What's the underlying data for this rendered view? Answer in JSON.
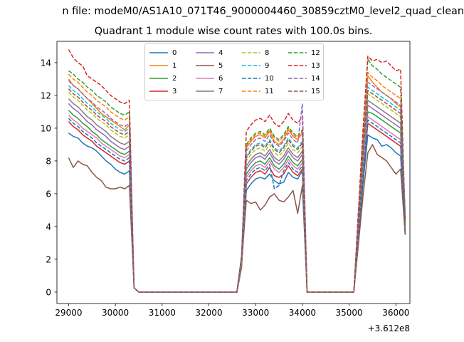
{
  "suptitle": "n file: modeM0/AS1A10_071T46_9000004460_30859cztM0_level2_quad_clean",
  "chart_data": {
    "type": "line",
    "title": "Quadrant 1 module wise count rates with 100.0s bins.",
    "xlabel": "",
    "ylabel": "",
    "offset_label": "+3.612e8",
    "xlim": [
      28750,
      36300
    ],
    "ylim": [
      -0.7,
      15.3
    ],
    "xticks": [
      29000,
      30000,
      31000,
      32000,
      33000,
      34000,
      35000,
      36000
    ],
    "xtick_labels": [
      "29000",
      "30000",
      "31000",
      "32000",
      "33000",
      "34000",
      "35000",
      "36000"
    ],
    "yticks": [
      0,
      2,
      4,
      6,
      8,
      10,
      12,
      14
    ],
    "ytick_labels": [
      "0",
      "2",
      "4",
      "6",
      "8",
      "10",
      "12",
      "14"
    ],
    "legend_loc": "upper center",
    "x_segments": [
      {
        "start": 29000,
        "step": 100,
        "count": 14
      },
      {
        "start": 30400,
        "step": 100,
        "count": 1
      },
      {
        "start": 30500,
        "step": 100,
        "count": 20
      },
      {
        "start": 32600,
        "step": 100,
        "count": 13
      },
      {
        "start": 33900,
        "step": 100,
        "count": 13
      },
      {
        "start": 35300,
        "step": 100,
        "count": 10
      }
    ],
    "gap_value": 0.0,
    "series": [
      {
        "name": "0",
        "color": "#1f77b4",
        "style": "solid",
        "up1": [
          9.7,
          9.5,
          9.4,
          9.1,
          8.9,
          8.8,
          8.6,
          8.3,
          8.0,
          7.8,
          7.5,
          7.3,
          7.2,
          7.4
        ],
        "up2": [
          6.2,
          6.6,
          6.9,
          7.0,
          6.9,
          7.2,
          6.8,
          6.6,
          6.7,
          7.3,
          7.0,
          6.9,
          7.4
        ],
        "up3": [
          9.6,
          9.4,
          9.3,
          8.9,
          9.0,
          8.8,
          8.5,
          8.3,
          8.1,
          7.9
        ]
      },
      {
        "name": "1",
        "color": "#ff7f0e",
        "style": "solid",
        "up1": [
          13.0,
          12.6,
          12.4,
          12.1,
          11.8,
          11.5,
          11.2,
          10.9,
          10.7,
          10.5,
          10.3,
          10.1,
          9.9,
          10.2
        ],
        "up2": [
          8.8,
          9.2,
          9.5,
          9.6,
          9.4,
          9.8,
          9.2,
          9.0,
          9.3,
          9.9,
          9.5,
          9.3,
          9.7
        ],
        "up3": [
          13.2,
          12.8,
          12.5,
          12.2,
          12.0,
          11.8,
          11.5,
          11.3,
          11.1,
          10.8
        ]
      },
      {
        "name": "2",
        "color": "#2ca02c",
        "style": "solid",
        "up1": [
          11.1,
          10.8,
          10.6,
          10.3,
          10.1,
          9.8,
          9.6,
          9.3,
          9.1,
          8.9,
          8.7,
          8.5,
          8.4,
          8.6
        ],
        "up2": [
          7.2,
          7.6,
          7.9,
          8.0,
          7.8,
          8.2,
          7.7,
          7.5,
          7.8,
          8.3,
          7.9,
          7.7,
          8.1
        ],
        "up3": [
          11.0,
          10.9,
          10.7,
          10.5,
          10.3,
          10.1,
          9.9,
          9.7,
          9.5,
          9.3
        ]
      },
      {
        "name": "3",
        "color": "#d62728",
        "style": "solid",
        "up1": [
          10.4,
          10.1,
          9.9,
          9.6,
          9.4,
          9.2,
          8.9,
          8.7,
          8.5,
          8.3,
          8.1,
          7.9,
          7.8,
          8.0
        ],
        "up2": [
          6.6,
          7.0,
          7.3,
          7.4,
          7.2,
          7.6,
          7.1,
          7.0,
          7.2,
          7.7,
          7.3,
          7.1,
          7.5
        ],
        "up3": [
          10.3,
          10.1,
          9.9,
          9.7,
          9.5,
          9.3,
          9.1,
          8.9,
          8.7,
          8.5
        ]
      },
      {
        "name": "4",
        "color": "#9467bd",
        "style": "solid",
        "up1": [
          11.5,
          11.2,
          11.0,
          10.7,
          10.4,
          10.2,
          9.9,
          9.7,
          9.5,
          9.2,
          9.0,
          8.8,
          8.7,
          8.9
        ],
        "up2": [
          7.5,
          7.9,
          8.2,
          8.3,
          8.1,
          8.5,
          8.0,
          7.8,
          8.1,
          8.6,
          8.2,
          8.0,
          8.4
        ],
        "up3": [
          11.4,
          11.2,
          11.0,
          10.8,
          10.6,
          10.4,
          10.2,
          10.0,
          9.8,
          9.6
        ]
      },
      {
        "name": "5",
        "color": "#8c564b",
        "style": "solid",
        "up1": [
          8.2,
          7.6,
          8.0,
          7.8,
          7.7,
          7.3,
          7.0,
          6.8,
          6.4,
          6.3,
          6.3,
          6.4,
          6.3,
          6.5
        ],
        "up2": [
          5.6,
          5.4,
          5.5,
          5.0,
          5.3,
          5.8,
          6.0,
          5.6,
          5.5,
          5.8,
          6.2,
          4.8,
          6.5
        ],
        "up3": [
          8.5,
          9.0,
          8.4,
          8.2,
          8.0,
          7.6,
          7.2,
          7.5,
          7.0,
          6.9
        ]
      },
      {
        "name": "6",
        "color": "#e377c2",
        "style": "solid",
        "up1": [
          10.8,
          10.5,
          10.3,
          10.0,
          9.8,
          9.6,
          9.4,
          9.1,
          8.9,
          8.7,
          8.5,
          8.3,
          8.2,
          8.4
        ],
        "up2": [
          7.0,
          7.4,
          7.7,
          7.8,
          7.6,
          8.0,
          7.5,
          7.3,
          7.6,
          8.1,
          7.7,
          7.5,
          7.9
        ],
        "up3": [
          10.7,
          10.5,
          10.3,
          10.1,
          9.9,
          9.7,
          9.5,
          9.3,
          9.1,
          8.9
        ]
      },
      {
        "name": "7",
        "color": "#7f7f7f",
        "style": "solid",
        "up1": [
          11.8,
          11.5,
          11.3,
          11.0,
          10.7,
          10.5,
          10.2,
          10.0,
          9.8,
          9.5,
          9.3,
          9.1,
          9.0,
          9.2
        ],
        "up2": [
          7.7,
          8.1,
          8.4,
          8.5,
          8.3,
          8.7,
          8.2,
          8.0,
          8.3,
          8.8,
          8.4,
          8.2,
          8.6
        ],
        "up3": [
          11.7,
          11.5,
          11.3,
          11.1,
          10.9,
          10.7,
          10.5,
          10.3,
          10.1,
          9.9
        ]
      },
      {
        "name": "8",
        "color": "#bcbd22",
        "style": "dashed",
        "up1": [
          12.2,
          11.9,
          11.7,
          11.4,
          11.1,
          10.9,
          10.6,
          10.4,
          10.2,
          9.9,
          9.7,
          9.5,
          9.4,
          9.6
        ],
        "up2": [
          8.0,
          8.4,
          8.7,
          8.8,
          8.6,
          9.0,
          8.5,
          8.3,
          8.6,
          9.1,
          8.7,
          8.5,
          8.9
        ],
        "up3": [
          12.1,
          11.9,
          11.7,
          11.5,
          11.3,
          11.1,
          10.9,
          10.7,
          10.5,
          10.3
        ]
      },
      {
        "name": "9",
        "color": "#17becf",
        "style": "dashed",
        "up1": [
          12.6,
          12.3,
          12.1,
          11.8,
          11.5,
          11.3,
          11.0,
          10.8,
          10.6,
          10.3,
          10.1,
          9.9,
          9.8,
          10.0
        ],
        "up2": [
          8.3,
          8.7,
          9.0,
          9.1,
          8.9,
          9.3,
          8.8,
          8.6,
          8.9,
          9.4,
          9.0,
          8.8,
          9.2
        ],
        "up3": [
          12.5,
          12.3,
          12.1,
          11.9,
          11.7,
          11.5,
          11.3,
          11.1,
          10.9,
          10.7
        ]
      },
      {
        "name": "10",
        "color": "#1f77b4",
        "style": "dashed",
        "up1": [
          10.6,
          10.3,
          10.1,
          9.8,
          9.6,
          9.4,
          9.1,
          8.9,
          8.7,
          8.5,
          8.3,
          8.1,
          8.0,
          8.2
        ],
        "up2": [
          6.8,
          7.2,
          7.5,
          7.6,
          7.4,
          7.8,
          6.3,
          6.5,
          7.4,
          7.9,
          7.5,
          7.3,
          7.7
        ],
        "up3": [
          10.5,
          10.3,
          10.1,
          9.9,
          9.7,
          9.5,
          9.3,
          9.1,
          8.9,
          8.7
        ]
      },
      {
        "name": "11",
        "color": "#ff7f0e",
        "style": "dashed",
        "up1": [
          13.3,
          13.0,
          12.8,
          12.5,
          12.2,
          12.0,
          11.7,
          11.5,
          11.3,
          11.0,
          10.8,
          10.6,
          10.5,
          10.7
        ],
        "up2": [
          8.9,
          9.3,
          9.6,
          9.7,
          9.5,
          9.9,
          9.4,
          9.2,
          9.5,
          10.0,
          9.6,
          9.4,
          9.8
        ],
        "up3": [
          13.4,
          13.1,
          12.9,
          12.6,
          12.4,
          12.2,
          12.0,
          11.8,
          11.6,
          11.4
        ]
      },
      {
        "name": "12",
        "color": "#2ca02c",
        "style": "dashed",
        "up1": [
          13.5,
          13.3,
          13.0,
          12.8,
          12.5,
          12.3,
          12.0,
          11.8,
          11.6,
          11.3,
          11.1,
          10.9,
          10.8,
          11.0
        ],
        "up2": [
          9.0,
          9.4,
          9.7,
          9.8,
          9.6,
          10.0,
          9.5,
          9.3,
          9.6,
          10.1,
          9.7,
          9.5,
          9.9
        ],
        "up3": [
          14.2,
          13.8,
          13.6,
          13.3,
          13.1,
          12.9,
          12.7,
          12.5,
          12.3,
          12.1
        ]
      },
      {
        "name": "13",
        "color": "#d62728",
        "style": "dashed",
        "up1": [
          14.8,
          14.3,
          14.0,
          13.8,
          13.2,
          13.0,
          12.8,
          12.6,
          12.3,
          12.0,
          11.8,
          11.6,
          11.5,
          11.7
        ],
        "up2": [
          9.8,
          10.2,
          10.5,
          10.6,
          10.4,
          10.8,
          10.3,
          10.1,
          10.4,
          10.9,
          10.5,
          10.3,
          10.7
        ],
        "up3": [
          14.4,
          14.1,
          14.2,
          14.0,
          14.1,
          13.8,
          13.5,
          13.6,
          13.2,
          13.3
        ]
      },
      {
        "name": "14",
        "color": "#9467bd",
        "style": "dashed",
        "up1": [
          12.9,
          12.6,
          12.4,
          12.1,
          11.8,
          11.6,
          11.3,
          11.1,
          10.9,
          10.6,
          10.4,
          10.2,
          10.1,
          10.3
        ],
        "up2": [
          8.6,
          9.0,
          9.3,
          9.4,
          9.2,
          9.6,
          9.1,
          8.9,
          9.2,
          9.7,
          9.3,
          9.1,
          11.5
        ],
        "up3": [
          12.8,
          12.6,
          12.4,
          12.2,
          12.0,
          11.8,
          11.6,
          11.4,
          11.2,
          11.0
        ]
      },
      {
        "name": "15",
        "color": "#8c564b",
        "style": "dashed",
        "up1": [
          12.4,
          12.1,
          11.9,
          11.6,
          11.3,
          11.1,
          10.8,
          10.6,
          10.4,
          10.1,
          9.9,
          9.7,
          9.6,
          9.8
        ],
        "up2": [
          8.2,
          8.6,
          8.9,
          9.0,
          8.8,
          9.2,
          8.7,
          8.5,
          8.8,
          9.3,
          8.9,
          8.7,
          9.1
        ],
        "up3": [
          12.3,
          12.1,
          11.9,
          11.7,
          11.5,
          11.3,
          11.1,
          10.9,
          10.7,
          10.5
        ]
      }
    ]
  }
}
